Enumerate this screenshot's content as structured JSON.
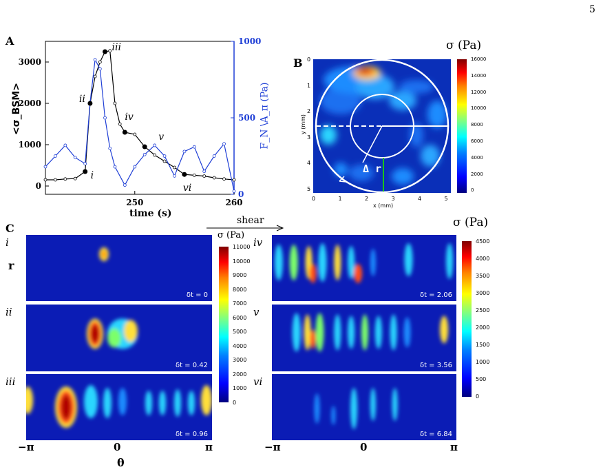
{
  "page_number": "5",
  "panels": {
    "A": {
      "letter": "A",
      "ylabel_left": "<σ_BSM>",
      "ylabel_right": "F_N \\A_π (Pa)",
      "xlabel": "time (s)",
      "left_ticks": [
        "3000",
        "2000",
        "1000",
        "0"
      ],
      "right_ticks": [
        "1000",
        "500",
        "0"
      ],
      "x_ticks": [
        "250",
        "260"
      ],
      "point_labels": [
        "i",
        "ii",
        "iii",
        "iv",
        "v",
        "vi"
      ],
      "colors": {
        "left_series": "#000000",
        "right_series": "#1f3fd6",
        "right_axis": "#1f3fd6"
      }
    },
    "B": {
      "letter": "B",
      "cbar_title": "σ (Pa)",
      "cbar_ticks": [
        "16000",
        "14000",
        "12000",
        "10000",
        "8000",
        "6000",
        "4000",
        "2000",
        "0"
      ],
      "xlabel": "x (mm)",
      "ylabel": "y (mm)",
      "x_ticks": [
        "0",
        "1",
        "2",
        "3",
        "4",
        "5"
      ],
      "y_ticks": [
        "0",
        "1",
        "2",
        "3",
        "4",
        "5"
      ],
      "delta_r": "Δ r"
    },
    "C": {
      "letter": "C",
      "shear_label": "shear",
      "r_label": "r",
      "theta_label": "θ",
      "theta_ticks": [
        "−π",
        "0",
        "π"
      ],
      "left_cbar_title": "σ (Pa)",
      "left_cbar_ticks": [
        "11000",
        "10000",
        "9000",
        "8000",
        "7000",
        "6000",
        "5000",
        "4000",
        "3000",
        "2000",
        "1000",
        "0"
      ],
      "right_cbar_title": "σ (Pa)",
      "right_cbar_ticks": [
        "4500",
        "4000",
        "3500",
        "3000",
        "2500",
        "2000",
        "1500",
        "1000",
        "500",
        "0"
      ],
      "strips": [
        {
          "roman": "i",
          "dt": "δt = 0"
        },
        {
          "roman": "ii",
          "dt": "δt = 0.42"
        },
        {
          "roman": "iii",
          "dt": "δt = 0.96"
        },
        {
          "roman": "iv",
          "dt": "δt = 2.06"
        },
        {
          "roman": "v",
          "dt": "δt = 3.56"
        },
        {
          "roman": "vi",
          "dt": "δt = 6.84"
        }
      ]
    }
  },
  "chart_data": {
    "type": "line",
    "xlabel": "time (s)",
    "ylabel": "<σ_BSM>",
    "y2label": "F_N \\A_π (Pa)",
    "xlim": [
      241,
      260
    ],
    "ylim": [
      -200,
      3500
    ],
    "y2lim": [
      0,
      1000
    ],
    "series": [
      {
        "axis": "left",
        "x": [
          241,
          242,
          243,
          244,
          245,
          245.5,
          246,
          246.5,
          247,
          247.5,
          248,
          248.5,
          249,
          250,
          251,
          252,
          253,
          254,
          255,
          256,
          257,
          258,
          259,
          260
        ],
        "values": [
          150,
          150,
          170,
          180,
          350,
          2000,
          2650,
          3000,
          3250,
          3270,
          2000,
          1500,
          1300,
          1250,
          950,
          750,
          600,
          450,
          280,
          260,
          240,
          200,
          170,
          150
        ]
      },
      {
        "axis": "right",
        "x": [
          241,
          242,
          243,
          244,
          245,
          245.5,
          246,
          246.5,
          247,
          247.5,
          248,
          249,
          250,
          251,
          252,
          253,
          254,
          255,
          256,
          257,
          258,
          259,
          260
        ],
        "values": [
          180,
          250,
          320,
          240,
          200,
          600,
          880,
          820,
          500,
          300,
          180,
          60,
          180,
          260,
          320,
          250,
          120,
          280,
          310,
          150,
          250,
          330,
          20
        ]
      }
    ]
  }
}
